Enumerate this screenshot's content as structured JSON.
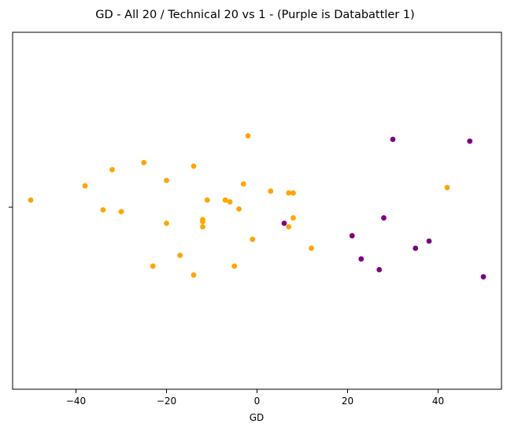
{
  "chart_data": {
    "type": "scatter",
    "title": "GD - All 20 / Technical 20 vs 1 - (Purple is Databattler 1)",
    "xlabel": "GD",
    "ylabel": "",
    "xlim": [
      -54,
      54
    ],
    "ylim": [
      -1,
      1
    ],
    "xticks": [
      -40,
      -20,
      0,
      20,
      40
    ],
    "xtick_labels": [
      "−40",
      "−20",
      "0",
      "20",
      "40"
    ],
    "grid": false,
    "legend": "none",
    "series": [
      {
        "color": "#ffa500",
        "points": [
          {
            "x": -50,
            "y": 0.06
          },
          {
            "x": -38,
            "y": 0.14
          },
          {
            "x": -34,
            "y": 0.005
          },
          {
            "x": -32,
            "y": 0.23
          },
          {
            "x": -30,
            "y": -0.005
          },
          {
            "x": -25,
            "y": 0.27
          },
          {
            "x": -23,
            "y": -0.31
          },
          {
            "x": -20,
            "y": 0.17
          },
          {
            "x": -20,
            "y": -0.07
          },
          {
            "x": -17,
            "y": -0.25
          },
          {
            "x": -14,
            "y": 0.25
          },
          {
            "x": -14,
            "y": -0.36
          },
          {
            "x": -12,
            "y": -0.05
          },
          {
            "x": -12,
            "y": -0.06
          },
          {
            "x": -12,
            "y": -0.09
          },
          {
            "x": -11,
            "y": 0.06
          },
          {
            "x": -7,
            "y": 0.06
          },
          {
            "x": -6,
            "y": 0.05
          },
          {
            "x": -5,
            "y": -0.31
          },
          {
            "x": -4,
            "y": 0.01
          },
          {
            "x": -3,
            "y": 0.15
          },
          {
            "x": -2,
            "y": 0.42
          },
          {
            "x": -1,
            "y": -0.16
          },
          {
            "x": 3,
            "y": 0.11
          },
          {
            "x": 7,
            "y": 0.1
          },
          {
            "x": 7,
            "y": -0.09
          },
          {
            "x": 8,
            "y": 0.1
          },
          {
            "x": 8,
            "y": -0.04
          },
          {
            "x": 12,
            "y": -0.21
          },
          {
            "x": 42,
            "y": 0.13
          }
        ]
      },
      {
        "color": "#800080",
        "points": [
          {
            "x": 6,
            "y": -0.07
          },
          {
            "x": 21,
            "y": -0.14
          },
          {
            "x": 23,
            "y": -0.27
          },
          {
            "x": 27,
            "y": -0.33
          },
          {
            "x": 28,
            "y": -0.04
          },
          {
            "x": 30,
            "y": 0.4
          },
          {
            "x": 35,
            "y": -0.21
          },
          {
            "x": 38,
            "y": -0.17
          },
          {
            "x": 47,
            "y": 0.39
          },
          {
            "x": 50,
            "y": -0.37
          }
        ]
      }
    ]
  }
}
